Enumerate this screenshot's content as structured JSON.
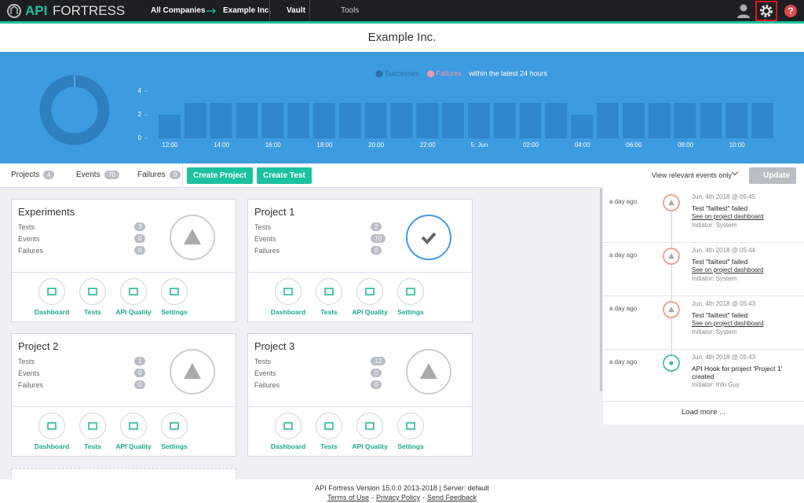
{
  "nav": {
    "logo_a": "API",
    "logo_b": "FORTRESS",
    "items": [
      "All Companies",
      "Example Inc.",
      "Vault",
      "Tools"
    ]
  },
  "page_title": "Example Inc.",
  "chart_data": {
    "type": "bar",
    "legend": [
      {
        "name": "Successes",
        "color": "#2a6fa8"
      },
      {
        "name": "Failures",
        "color": "#f49ab0"
      }
    ],
    "note": "within the latest 24 hours",
    "categories": [
      "12:00",
      null,
      "14:00",
      null,
      "16:00",
      null,
      "18:00",
      null,
      "20:00",
      null,
      "22:00",
      null,
      "5. Jun",
      null,
      "02:00",
      null,
      "04:00",
      null,
      "06:00",
      null,
      "08:00",
      null,
      "10:00",
      null
    ],
    "values": [
      2,
      3,
      3,
      3,
      3,
      3,
      3,
      3,
      3,
      3,
      3,
      3,
      3,
      3,
      3,
      3,
      2,
      3,
      3,
      3,
      3,
      3,
      3,
      3
    ],
    "color": "#2f86cb",
    "ylim": [
      0,
      4
    ],
    "yticks": [
      0,
      2,
      4
    ]
  },
  "toolbar": {
    "counters": [
      {
        "label": "Projects",
        "value": 4
      },
      {
        "label": "Events",
        "value": 70
      },
      {
        "label": "Failures",
        "value": 0
      }
    ],
    "buttons": [
      "Create Project",
      "Create Test"
    ],
    "filter": "View relevant events only",
    "update": "Update"
  },
  "stat_labels": [
    "Tests",
    "Events",
    "Failures"
  ],
  "actions": [
    "Dashboard",
    "Tests",
    "API Quality",
    "Settings"
  ],
  "projects": [
    {
      "name": "Experiments",
      "stats": [
        3,
        0,
        0
      ],
      "status": "warning"
    },
    {
      "name": "Project 1",
      "stats": [
        2,
        70,
        0
      ],
      "status": "ok"
    },
    {
      "name": "Project 2",
      "stats": [
        1,
        0,
        0
      ],
      "status": "warning"
    },
    {
      "name": "Project 3",
      "stats": [
        12,
        0,
        0
      ],
      "status": "warning"
    }
  ],
  "events": [
    {
      "when": "a day ago",
      "date": "Jun, 4th 2018 @ 05:45",
      "title": "Test \"failtest\" failed",
      "link": "See on project dashboard",
      "initiator": "Initiator: System",
      "kind": "warning"
    },
    {
      "when": "a day ago",
      "date": "Jun, 4th 2018 @ 05:44",
      "title": "Test \"failtest\" failed",
      "link": "See on project dashboard",
      "initiator": "Initiator: System",
      "kind": "warning"
    },
    {
      "when": "a day ago",
      "date": "Jun, 4th 2018 @ 05:43",
      "title": "Test \"failtest\" failed",
      "link": "See on project dashboard",
      "initiator": "Initiator: System",
      "kind": "warning"
    },
    {
      "when": "a day ago",
      "date": "Jun, 4th 2018 @ 05:43",
      "title": "API Hook for project 'Project 1' created",
      "initiator": "Initiator: Info Guy",
      "kind": "hook"
    }
  ],
  "load_more": "Load more ...",
  "footer": {
    "version": "API Fortress Version 15.0.0 2013-2018 | Server: default",
    "links": [
      "Terms of Use",
      "Privacy Policy",
      "Send Feedback"
    ],
    "separator": "-"
  }
}
